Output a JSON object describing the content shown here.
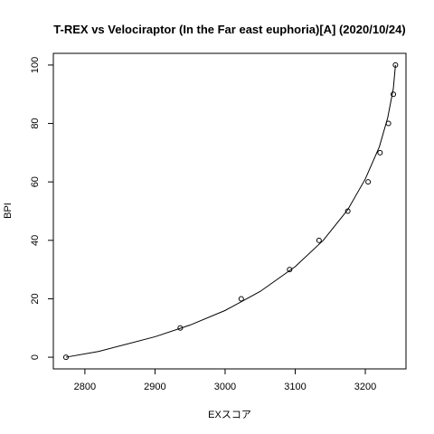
{
  "chart_data": {
    "type": "scatter",
    "title": "T-REX vs Velociraptor (In the Far east euphoria)[A] (2020/10/24)",
    "xlabel": "EXスコア",
    "ylabel": "BPI",
    "xlim": [
      2755,
      3258
    ],
    "ylim": [
      -4,
      104
    ],
    "x_ticks": [
      2800,
      2900,
      3000,
      3100,
      3200
    ],
    "y_ticks": [
      0,
      20,
      40,
      60,
      80,
      100
    ],
    "points": [
      {
        "x": 2773,
        "y": 0
      },
      {
        "x": 2936,
        "y": 10
      },
      {
        "x": 3023,
        "y": 20
      },
      {
        "x": 3092,
        "y": 30
      },
      {
        "x": 3134,
        "y": 40
      },
      {
        "x": 3175,
        "y": 50
      },
      {
        "x": 3204,
        "y": 60
      },
      {
        "x": 3221,
        "y": 70
      },
      {
        "x": 3233,
        "y": 80
      },
      {
        "x": 3240,
        "y": 90
      },
      {
        "x": 3243,
        "y": 100
      }
    ],
    "fitted_curve": [
      {
        "x": 2773,
        "y": 0
      },
      {
        "x": 2820,
        "y": 2
      },
      {
        "x": 2900,
        "y": 7
      },
      {
        "x": 2950,
        "y": 11
      },
      {
        "x": 3000,
        "y": 16
      },
      {
        "x": 3050,
        "y": 22.5
      },
      {
        "x": 3100,
        "y": 31
      },
      {
        "x": 3140,
        "y": 40
      },
      {
        "x": 3175,
        "y": 50.5
      },
      {
        "x": 3200,
        "y": 61
      },
      {
        "x": 3220,
        "y": 72
      },
      {
        "x": 3232,
        "y": 82
      },
      {
        "x": 3240,
        "y": 92
      },
      {
        "x": 3243,
        "y": 100
      }
    ],
    "grid": false,
    "legend": "none"
  }
}
